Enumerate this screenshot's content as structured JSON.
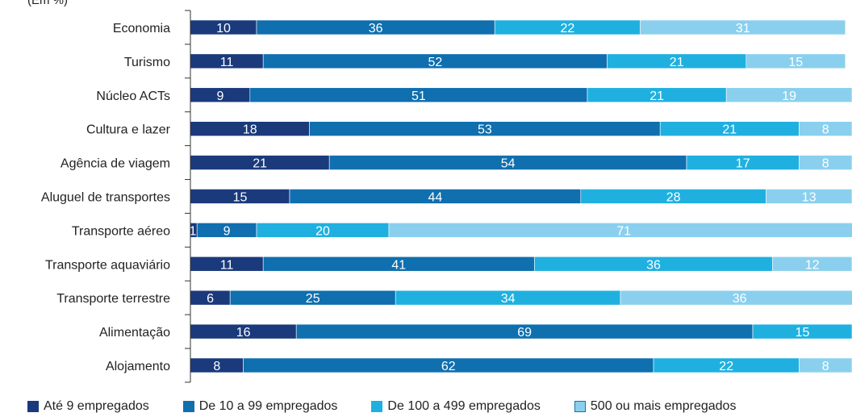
{
  "chart_data": {
    "type": "bar",
    "orientation": "horizontal",
    "stacked": true,
    "unit_label": "(Em %)",
    "categories": [
      "Economia",
      "Turismo",
      "Núcleo ACTs",
      "Cultura e lazer",
      "Agência de viagem",
      "Aluguel de transportes",
      "Transporte aéreo",
      "Transporte aquaviário",
      "Transporte terrestre",
      "Alimentação",
      "Alojamento"
    ],
    "series": [
      {
        "name": "Até 9 empregados",
        "color": "#1a3a7c",
        "values": [
          10,
          11,
          9,
          18,
          21,
          15,
          1,
          11,
          6,
          16,
          8
        ]
      },
      {
        "name": "De 10 a 99 empregados",
        "color": "#0f6faf",
        "values": [
          36,
          52,
          51,
          53,
          54,
          44,
          9,
          41,
          25,
          69,
          62
        ]
      },
      {
        "name": "De 100 a 499 empregados",
        "color": "#1fb0e0",
        "values": [
          22,
          21,
          21,
          21,
          17,
          28,
          20,
          36,
          34,
          15,
          22
        ]
      },
      {
        "name": "500 ou mais empregados",
        "color": "#8ad0ee",
        "values": [
          31,
          15,
          19,
          8,
          8,
          13,
          71,
          12,
          36,
          0,
          8
        ]
      }
    ],
    "xlim": [
      0,
      100
    ],
    "grid": false,
    "legend_position": "bottom"
  }
}
